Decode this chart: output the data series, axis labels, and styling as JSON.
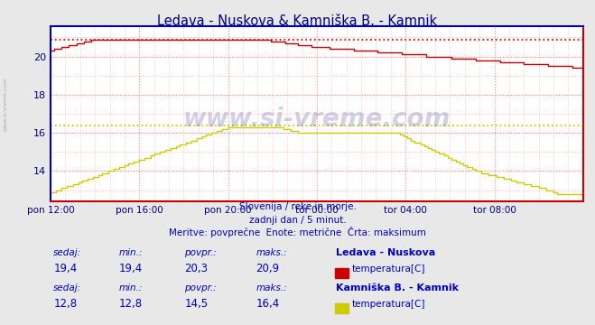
{
  "title": "Ledava - Nuskova & Kamniška B. - Kamnik",
  "title_color": "#000080",
  "bg_color": "#e8e8e8",
  "plot_bg_color": "#ffffff",
  "xlabel_color": "#000080",
  "ylabel_color": "#000080",
  "x_tick_labels": [
    "pon 12:00",
    "pon 16:00",
    "pon 20:00",
    "tor 00:00",
    "tor 04:00",
    "tor 08:00"
  ],
  "x_tick_positions": [
    0,
    48,
    96,
    144,
    192,
    240
  ],
  "total_points": 288,
  "ylim_min": 12.4,
  "ylim_max": 21.6,
  "yticks": [
    14,
    16,
    18,
    20
  ],
  "line1_color": "#cc0000",
  "line2_color": "#cccc00",
  "hline1_color": "#ff0000",
  "hline2_color": "#cccc00",
  "hline1_value": 20.9,
  "hline2_value": 16.4,
  "spine_left_color": "#0000cc",
  "spine_bottom_color": "#cc0000",
  "subtitle1": "Slovenija / reke in morje.",
  "subtitle2": "zadnji dan / 5 minut.",
  "subtitle3": "Meritve: povprečne  Enote: metrične  Črta: maksimum",
  "subtitle_color": "#0000cc",
  "watermark": "www.si-vreme.com",
  "watermark_color": "#000080",
  "stat_color": "#0000cc",
  "station1_name": "Ledava - Nuskova",
  "station1_sedaj": "19,4",
  "station1_min": "19,4",
  "station1_povpr": "20,3",
  "station1_maks": "20,9",
  "station1_param": "temperatura[C]",
  "station1_swatch": "#cc0000",
  "station2_name": "Kamniška B. - Kamnik",
  "station2_sedaj": "12,8",
  "station2_min": "12,8",
  "station2_povpr": "14,5",
  "station2_maks": "16,4",
  "station2_param": "temperatura[C]",
  "station2_swatch": "#cccc00"
}
